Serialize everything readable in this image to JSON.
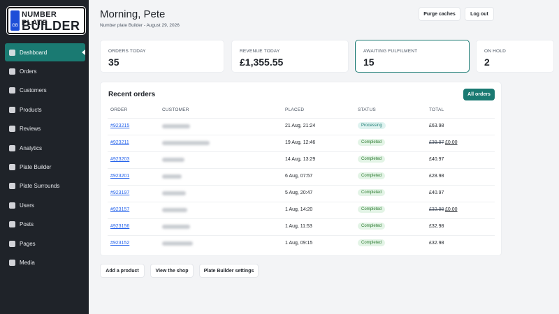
{
  "logo": {
    "line1": "NUMBER PLATE",
    "line2": "BUILDER",
    "badge": "GB"
  },
  "nav": [
    "Dashboard",
    "Orders",
    "Customers",
    "Products",
    "Reviews",
    "Analytics",
    "Plate Builder",
    "Plate Surrounds",
    "Users",
    "Posts",
    "Pages",
    "Media"
  ],
  "header": {
    "greeting": "Morning, Pete",
    "subtitle": "Number plate Builder - August 29, 2026",
    "buttons": [
      "Purge caches",
      "Log out"
    ]
  },
  "stats": [
    {
      "label": "ORDERS TODAY",
      "value": "35"
    },
    {
      "label": "REVENUE TODAY",
      "value": "£1,355.55"
    },
    {
      "label": "AWAITING FULFILMENT",
      "value": "15"
    },
    {
      "label": "ON HOLD",
      "value": "2"
    }
  ],
  "recent_orders": {
    "title": "Recent orders",
    "button": "All orders",
    "columns": [
      "ORDER",
      "CUSTOMER",
      "PLACED",
      "STATUS",
      "TOTAL"
    ],
    "rows": [
      {
        "order": "#923215",
        "placed": "21 Aug, 21:24",
        "status": "Processing",
        "total": "£63.98"
      },
      {
        "order": "#923211",
        "placed": "19 Aug, 12:46",
        "status": "Completed",
        "total": "£39.97",
        "new_total": "£0.00"
      },
      {
        "order": "#923203",
        "placed": "14 Aug, 13:29",
        "status": "Completed",
        "total": "£40.97"
      },
      {
        "order": "#923201",
        "placed": "6 Aug, 07:57",
        "status": "Completed",
        "total": "£28.98"
      },
      {
        "order": "#923197",
        "placed": "5 Aug, 20:47",
        "status": "Completed",
        "total": "£40.97"
      },
      {
        "order": "#923157",
        "placed": "1 Aug, 14:20",
        "status": "Completed",
        "total": "£32.98",
        "new_total": "£0.00"
      },
      {
        "order": "#923156",
        "placed": "1 Aug, 11:53",
        "status": "Completed",
        "total": "£32.98"
      },
      {
        "order": "#923152",
        "placed": "1 Aug, 09:15",
        "status": "Completed",
        "total": "£32.98"
      }
    ]
  },
  "footer_buttons": [
    "Add a product",
    "View the shop",
    "Plate Builder settings"
  ]
}
